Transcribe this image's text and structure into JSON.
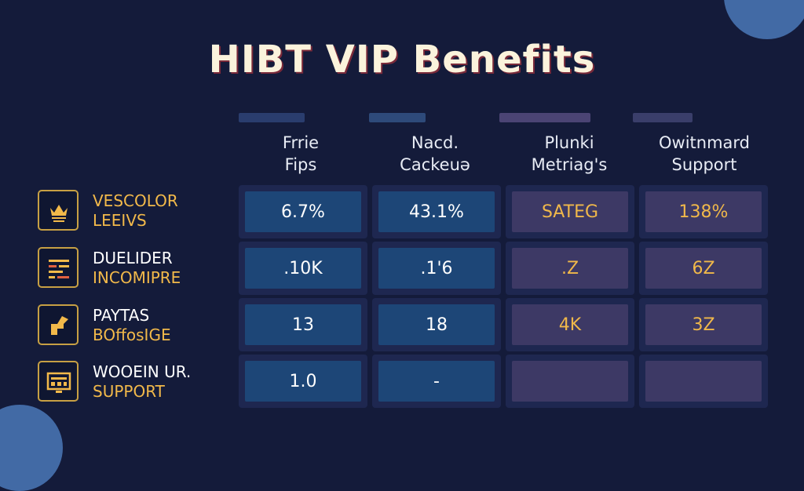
{
  "title": "HIBT VIP Benefits",
  "columns": [
    {
      "line1": "Frrie",
      "line2": "Fips"
    },
    {
      "line1": "Nacd.",
      "line2": "Cackeuə"
    },
    {
      "line1": "Plunki",
      "line2": "Metriag's"
    },
    {
      "line1": "Owitnmard",
      "line2": "Support"
    }
  ],
  "rows": [
    {
      "line1": "VESCOLOR",
      "line2": "LEEIVS",
      "icon": "crown-icon",
      "values": [
        "6.7%",
        "43.1%",
        "SATEG",
        "138%"
      ]
    },
    {
      "line1": "DUELIDER",
      "line2": "INCOMIPRE",
      "icon": "chart-bars-icon",
      "values": [
        ".10K",
        ".1'6",
        ".Z",
        "6Z"
      ]
    },
    {
      "line1": "PAYTAS",
      "line2": "BOffosIGE",
      "icon": "arrow-icon",
      "values": [
        "13",
        "18",
        "4K",
        "3Z"
      ]
    },
    {
      "line1": "WOOEIN UR.",
      "line2": "SUPPORT",
      "icon": "monitor-icon",
      "values": [
        "1.0",
        "-",
        "",
        ""
      ]
    }
  ],
  "colors": {
    "background": "#141b3a",
    "accent_gold": "#f2b94a",
    "cell_blue": "#1d4677",
    "cell_purple": "#3d3965"
  }
}
